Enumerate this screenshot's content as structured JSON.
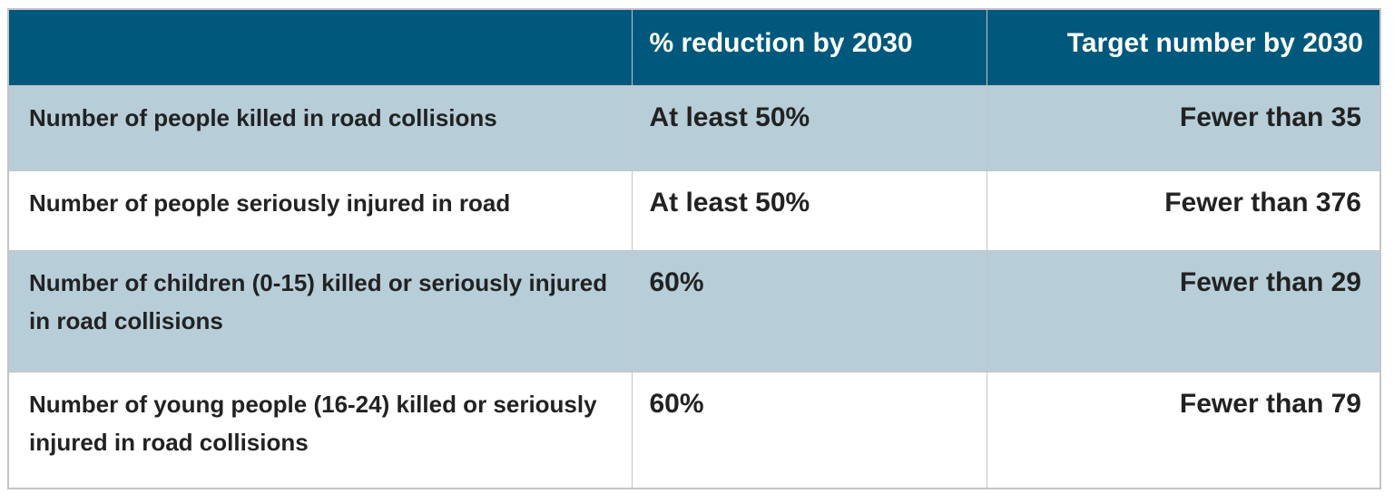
{
  "header": {
    "col1": "",
    "col2": "% reduction by 2030",
    "col3": "Target number by 2030"
  },
  "rows": [
    {
      "measure": "Number of people killed in road collisions",
      "reduction": "At least 50%",
      "target": "Fewer than 35"
    },
    {
      "measure": "Number of people seriously injured in road",
      "reduction": "At least 50%",
      "target": "Fewer than 376"
    },
    {
      "measure": "Number of children (0-15) killed or seriously injured in road collisions",
      "reduction": "60%",
      "target": "Fewer than 29"
    },
    {
      "measure": "Number of young people (16-24) killed or seriously injured in road collisions",
      "reduction": "60%",
      "target": "Fewer than 79"
    }
  ],
  "colors": {
    "header": "#00587c",
    "shaded_row": "#b7ced9"
  }
}
